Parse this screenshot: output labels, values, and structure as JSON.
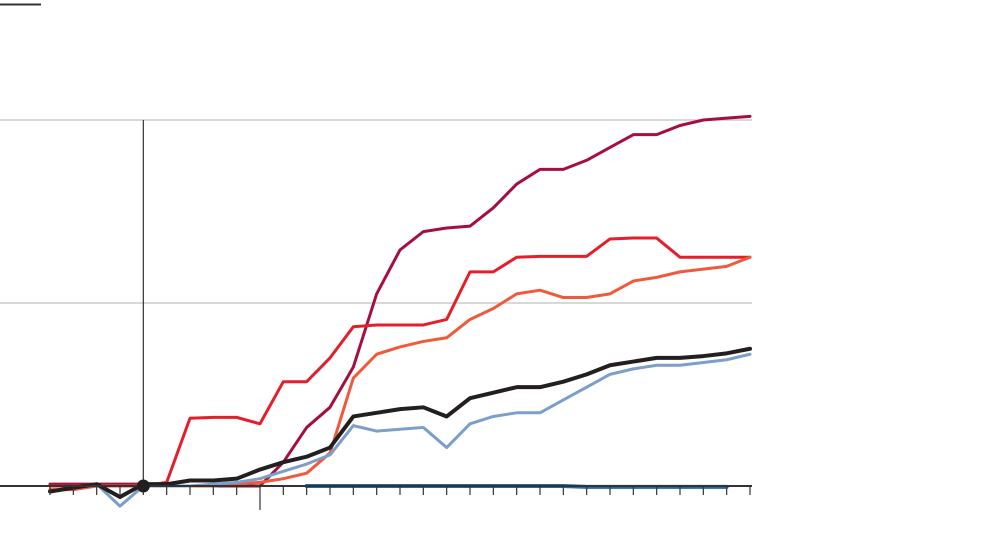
{
  "chart_data": {
    "type": "line",
    "title": "",
    "xlabel": "",
    "ylabel": "",
    "x": [
      0,
      1,
      2,
      3,
      4,
      5,
      6,
      7,
      8,
      9,
      10,
      11,
      12,
      13,
      14,
      15,
      16,
      17,
      18,
      19,
      20,
      21,
      22,
      23,
      24,
      25,
      26,
      27,
      28,
      29,
      30
    ],
    "xlim": [
      0,
      30
    ],
    "ylim": [
      -0.3,
      2.0
    ],
    "yticks": [
      0,
      1,
      2
    ],
    "grid": true,
    "marker": {
      "x": 4,
      "y": 0
    },
    "series": [
      {
        "color": "#a50f3d",
        "width": 3,
        "values": [
          0.01,
          0.01,
          0.01,
          0.01,
          0.01,
          0,
          0,
          0,
          0,
          0,
          0.13,
          0.32,
          0.43,
          0.65,
          1.05,
          1.29,
          1.39,
          1.41,
          1.42,
          1.52,
          1.65,
          1.73,
          1.73,
          1.78,
          1.85,
          1.92,
          1.92,
          1.97,
          2.0,
          2.01,
          2.02
        ]
      },
      {
        "color": "#e41f2b",
        "width": 3,
        "values": [
          0,
          0,
          0,
          0,
          0,
          0.02,
          0.37,
          0.375,
          0.375,
          0.34,
          0.57,
          0.57,
          0.7,
          0.87,
          0.88,
          0.88,
          0.88,
          0.91,
          1.17,
          1.17,
          1.25,
          1.255,
          1.255,
          1.255,
          1.35,
          1.355,
          1.355,
          1.25,
          1.25,
          1.25,
          1.25
        ]
      },
      {
        "color": "#ef5a3c",
        "width": 3,
        "values": [
          -0.02,
          -0.02,
          0,
          0,
          0,
          0,
          0,
          0,
          0.01,
          0.02,
          0.04,
          0.07,
          0.18,
          0.59,
          0.72,
          0.76,
          0.79,
          0.81,
          0.91,
          0.97,
          1.05,
          1.07,
          1.03,
          1.03,
          1.05,
          1.12,
          1.14,
          1.17,
          1.185,
          1.2,
          1.25
        ]
      },
      {
        "color": "#7b9fc8",
        "width": 3,
        "values": [
          -0.03,
          -0.01,
          0.01,
          -0.11,
          0,
          0,
          0,
          0.01,
          0.02,
          0.04,
          0.08,
          0.12,
          0.17,
          0.33,
          0.3,
          0.31,
          0.32,
          0.21,
          0.34,
          0.38,
          0.4,
          0.4,
          0.47,
          0.54,
          0.61,
          0.64,
          0.66,
          0.66,
          0.675,
          0.69,
          0.72
        ]
      },
      {
        "color": "#231f20",
        "width": 4,
        "values": [
          -0.03,
          -0.01,
          0.01,
          -0.06,
          0.01,
          0.01,
          0.03,
          0.03,
          0.04,
          0.09,
          0.13,
          0.16,
          0.21,
          0.38,
          0.4,
          0.42,
          0.43,
          0.38,
          0.48,
          0.51,
          0.54,
          0.54,
          0.57,
          0.61,
          0.66,
          0.68,
          0.7,
          0.7,
          0.71,
          0.725,
          0.75
        ]
      },
      {
        "color": "#1f6aa5",
        "width": 4,
        "values": [
          null,
          null,
          null,
          null,
          null,
          null,
          null,
          null,
          null,
          null,
          null,
          0,
          0,
          0,
          0,
          0,
          0,
          0,
          0,
          0,
          0,
          0,
          0,
          -0.005,
          -0.005,
          -0.005,
          -0.005,
          -0.005,
          -0.005,
          -0.005,
          null
        ]
      }
    ]
  }
}
